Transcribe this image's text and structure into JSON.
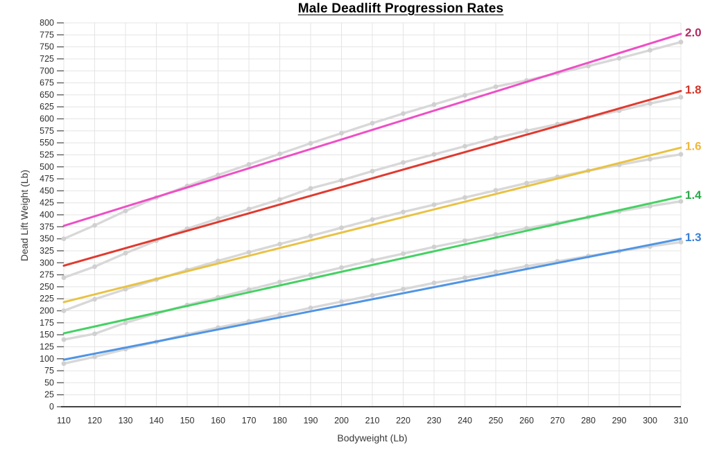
{
  "chart_data": {
    "type": "line",
    "title": "Male Deadlift Progression Rates",
    "xlabel": "Bodyweight (Lb)",
    "ylabel": "Dead Lift Weight (Lb)",
    "xlim": [
      110,
      310
    ],
    "ylim": [
      0,
      800
    ],
    "grid": true,
    "legend_position": "right-edge-line-labels",
    "x_ticks": [
      110,
      120,
      130,
      140,
      150,
      160,
      170,
      180,
      190,
      200,
      210,
      220,
      230,
      240,
      250,
      260,
      270,
      280,
      290,
      300,
      310
    ],
    "y_ticks": [
      0,
      25,
      50,
      75,
      100,
      125,
      150,
      175,
      200,
      225,
      250,
      275,
      300,
      325,
      350,
      375,
      400,
      425,
      450,
      475,
      500,
      525,
      550,
      575,
      600,
      625,
      650,
      675,
      700,
      725,
      750,
      775,
      800
    ],
    "x": [
      110,
      120,
      130,
      140,
      150,
      160,
      170,
      180,
      190,
      200,
      210,
      220,
      230,
      240,
      250,
      260,
      270,
      280,
      290,
      300,
      310
    ],
    "series": [
      {
        "label": "2.0",
        "label_color": "#b02863",
        "line_color": "#ee4fc5",
        "data_color": "#d8d8d8",
        "trend": {
          "start": 377,
          "end": 777
        },
        "data": [
          350,
          378,
          408,
          436,
          460,
          483,
          505,
          527,
          549,
          570,
          591,
          611,
          630,
          649,
          667,
          680,
          695,
          710,
          726,
          743,
          760
        ]
      },
      {
        "label": "1.8",
        "label_color": "#d33426",
        "line_color": "#e03a2f",
        "data_color": "#d8d8d8",
        "trend": {
          "start": 294,
          "end": 658
        },
        "data": [
          269,
          292,
          320,
          346,
          371,
          392,
          412,
          432,
          455,
          472,
          491,
          509,
          526,
          543,
          560,
          575,
          589,
          603,
          617,
          632,
          645
        ]
      },
      {
        "label": "1.6",
        "label_color": "#efb83b",
        "line_color": "#e9c243",
        "data_color": "#d8d8d8",
        "trend": {
          "start": 218,
          "end": 540
        },
        "data": [
          200,
          224,
          245,
          265,
          285,
          304,
          322,
          339,
          356,
          373,
          390,
          406,
          421,
          436,
          451,
          466,
          479,
          492,
          504,
          516,
          526
        ]
      },
      {
        "label": "1.4",
        "label_color": "#2ba84c",
        "line_color": "#44d163",
        "data_color": "#d8d8d8",
        "trend": {
          "start": 153,
          "end": 438
        },
        "data": [
          140,
          152,
          175,
          194,
          212,
          228,
          244,
          260,
          275,
          290,
          305,
          319,
          333,
          346,
          359,
          372,
          383,
          395,
          407,
          418,
          428
        ]
      },
      {
        "label": "1.3",
        "label_color": "#3a7fd5",
        "line_color": "#5095e5",
        "data_color": "#d8d8d8",
        "trend": {
          "start": 98,
          "end": 350
        },
        "data": [
          90,
          104,
          120,
          135,
          151,
          165,
          178,
          192,
          206,
          219,
          232,
          245,
          258,
          269,
          281,
          293,
          303,
          314,
          324,
          334,
          343
        ]
      }
    ],
    "colors": {
      "grid": "#e4e4e4",
      "axis_line": "#424242",
      "tick_mark": "#616161",
      "tick_label": "#2e2e2e",
      "marker_fill": "#d0d0d0",
      "background": "#ffffff"
    }
  }
}
